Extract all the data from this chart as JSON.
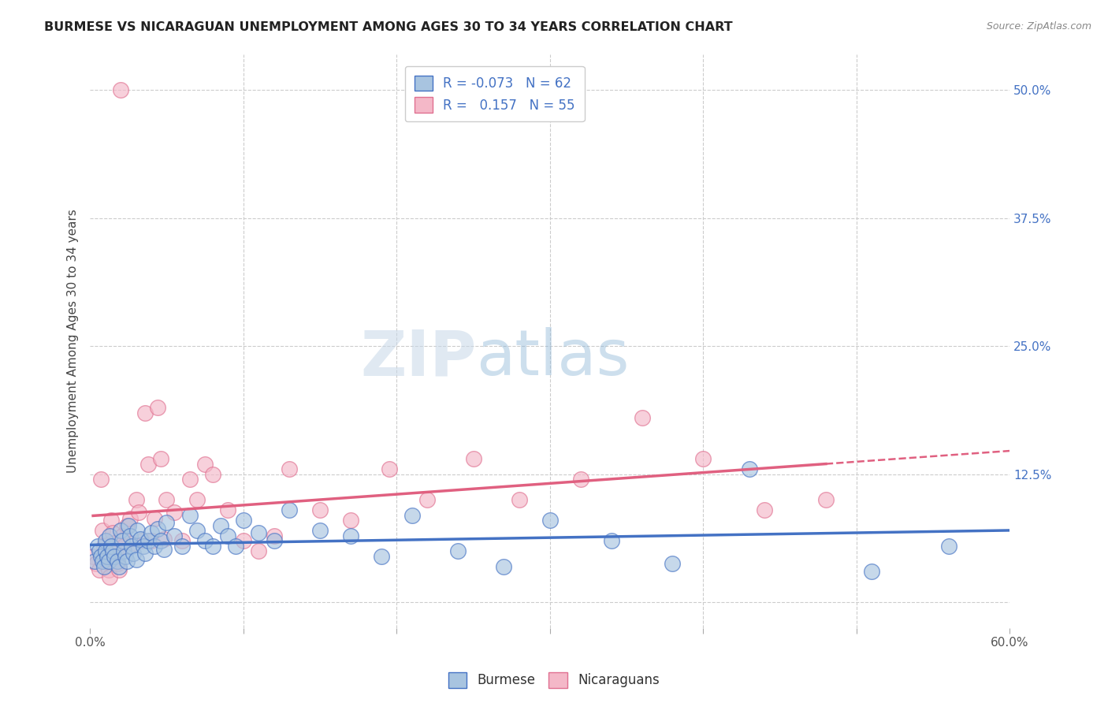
{
  "title": "BURMESE VS NICARAGUAN UNEMPLOYMENT AMONG AGES 30 TO 34 YEARS CORRELATION CHART",
  "source": "Source: ZipAtlas.com",
  "ylabel": "Unemployment Among Ages 30 to 34 years",
  "xlabel": "",
  "xlim": [
    0.0,
    0.6
  ],
  "ylim": [
    -0.025,
    0.535
  ],
  "yticks": [
    0.0,
    0.125,
    0.25,
    0.375,
    0.5
  ],
  "ytick_labels": [
    "",
    "12.5%",
    "25.0%",
    "37.5%",
    "50.0%"
  ],
  "xticks": [
    0.0,
    0.1,
    0.2,
    0.3,
    0.4,
    0.5,
    0.6
  ],
  "xtick_labels": [
    "0.0%",
    "",
    "",
    "",
    "",
    "",
    "60.0%"
  ],
  "grid_color": "#cccccc",
  "background_color": "#ffffff",
  "burmese_color": "#a8c4e0",
  "nicaraguan_color": "#f4b8c8",
  "burmese_edge_color": "#4472c4",
  "nicaraguan_edge_color": "#e07090",
  "burmese_line_color": "#4472c4",
  "nicaraguan_line_color": "#e06080",
  "burmese_R": -0.073,
  "burmese_N": 62,
  "nicaraguan_R": 0.157,
  "nicaraguan_N": 55,
  "watermark_zip": "ZIP",
  "watermark_atlas": "atlas",
  "burmese_x": [
    0.003,
    0.005,
    0.006,
    0.007,
    0.008,
    0.009,
    0.01,
    0.01,
    0.011,
    0.012,
    0.013,
    0.014,
    0.015,
    0.016,
    0.018,
    0.019,
    0.02,
    0.021,
    0.022,
    0.023,
    0.024,
    0.025,
    0.026,
    0.027,
    0.028,
    0.03,
    0.031,
    0.033,
    0.035,
    0.036,
    0.038,
    0.04,
    0.042,
    0.044,
    0.046,
    0.048,
    0.05,
    0.055,
    0.06,
    0.065,
    0.07,
    0.075,
    0.08,
    0.085,
    0.09,
    0.095,
    0.1,
    0.11,
    0.12,
    0.13,
    0.15,
    0.17,
    0.19,
    0.21,
    0.24,
    0.27,
    0.3,
    0.34,
    0.38,
    0.43,
    0.51,
    0.56
  ],
  "burmese_y": [
    0.04,
    0.055,
    0.05,
    0.045,
    0.04,
    0.035,
    0.06,
    0.05,
    0.045,
    0.04,
    0.065,
    0.055,
    0.05,
    0.045,
    0.04,
    0.035,
    0.07,
    0.06,
    0.05,
    0.045,
    0.04,
    0.075,
    0.065,
    0.055,
    0.048,
    0.042,
    0.07,
    0.062,
    0.055,
    0.048,
    0.06,
    0.068,
    0.055,
    0.072,
    0.06,
    0.052,
    0.078,
    0.065,
    0.055,
    0.085,
    0.07,
    0.06,
    0.055,
    0.075,
    0.065,
    0.055,
    0.08,
    0.068,
    0.06,
    0.09,
    0.07,
    0.065,
    0.045,
    0.085,
    0.05,
    0.035,
    0.08,
    0.06,
    0.038,
    0.13,
    0.03,
    0.055
  ],
  "nicaraguan_x": [
    0.002,
    0.004,
    0.006,
    0.007,
    0.008,
    0.009,
    0.01,
    0.011,
    0.012,
    0.013,
    0.014,
    0.015,
    0.016,
    0.017,
    0.018,
    0.019,
    0.02,
    0.021,
    0.022,
    0.024,
    0.026,
    0.028,
    0.03,
    0.032,
    0.034,
    0.036,
    0.038,
    0.04,
    0.042,
    0.044,
    0.046,
    0.048,
    0.05,
    0.055,
    0.06,
    0.065,
    0.07,
    0.075,
    0.08,
    0.09,
    0.1,
    0.11,
    0.12,
    0.13,
    0.15,
    0.17,
    0.195,
    0.22,
    0.25,
    0.28,
    0.32,
    0.36,
    0.4,
    0.44,
    0.48
  ],
  "nicaraguan_y": [
    0.045,
    0.038,
    0.032,
    0.12,
    0.07,
    0.055,
    0.048,
    0.04,
    0.032,
    0.025,
    0.08,
    0.068,
    0.058,
    0.048,
    0.038,
    0.032,
    0.5,
    0.065,
    0.055,
    0.075,
    0.082,
    0.058,
    0.1,
    0.088,
    0.06,
    0.185,
    0.135,
    0.06,
    0.082,
    0.19,
    0.14,
    0.062,
    0.1,
    0.088,
    0.06,
    0.12,
    0.1,
    0.135,
    0.125,
    0.09,
    0.06,
    0.05,
    0.065,
    0.13,
    0.09,
    0.08,
    0.13,
    0.1,
    0.14,
    0.1,
    0.12,
    0.18,
    0.14,
    0.09,
    0.1
  ]
}
